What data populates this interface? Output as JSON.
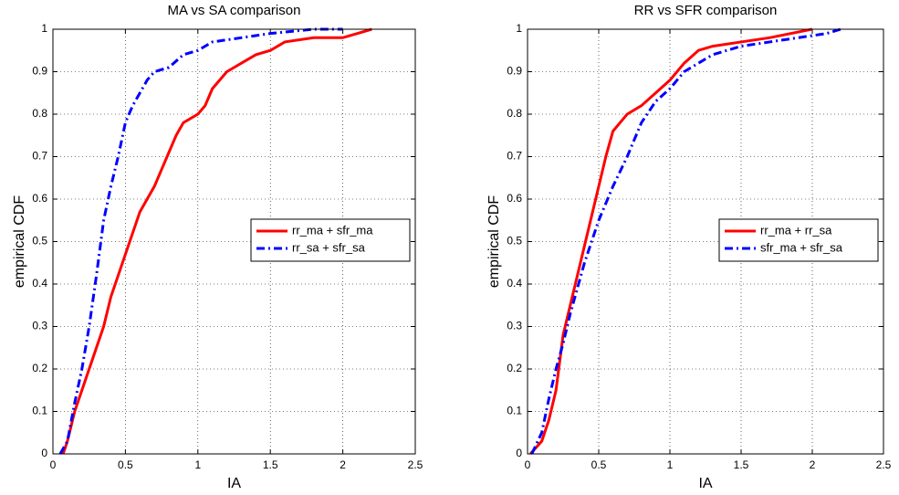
{
  "chart_data": [
    {
      "type": "line",
      "title": "MA vs SA comparison",
      "x_label": "IA",
      "y_label": "empirical CDF",
      "xlim": [
        0,
        2.5
      ],
      "ylim": [
        0,
        1
      ],
      "xticks": [
        0,
        0.5,
        1,
        1.5,
        2,
        2.5
      ],
      "yticks": [
        0,
        0.1,
        0.2,
        0.3,
        0.4,
        0.5,
        0.6,
        0.7,
        0.8,
        0.9,
        1
      ],
      "grid": true,
      "legend": "right",
      "series": [
        {
          "name": "rr_ma + sfr_ma",
          "color": "#ff0000",
          "style": "solid",
          "x": [
            0.07,
            0.1,
            0.15,
            0.2,
            0.25,
            0.3,
            0.35,
            0.4,
            0.45,
            0.5,
            0.55,
            0.6,
            0.65,
            0.7,
            0.75,
            0.8,
            0.85,
            0.9,
            1.0,
            1.05,
            1.1,
            1.2,
            1.3,
            1.4,
            1.5,
            1.6,
            1.8,
            2.0,
            2.1,
            2.2
          ],
          "values": [
            0,
            0.03,
            0.1,
            0.15,
            0.2,
            0.25,
            0.3,
            0.37,
            0.42,
            0.47,
            0.52,
            0.57,
            0.6,
            0.63,
            0.67,
            0.71,
            0.75,
            0.78,
            0.8,
            0.82,
            0.86,
            0.9,
            0.92,
            0.94,
            0.95,
            0.97,
            0.98,
            0.98,
            0.99,
            1
          ]
        },
        {
          "name": "rr_sa + sfr_sa",
          "color": "#0000ff",
          "style": "dashdot",
          "x": [
            0.05,
            0.1,
            0.15,
            0.2,
            0.25,
            0.3,
            0.35,
            0.4,
            0.45,
            0.5,
            0.55,
            0.6,
            0.65,
            0.7,
            0.8,
            0.9,
            1.0,
            1.1,
            1.3,
            1.5,
            1.8,
            2.0
          ],
          "values": [
            0,
            0.03,
            0.12,
            0.2,
            0.3,
            0.42,
            0.55,
            0.63,
            0.7,
            0.78,
            0.82,
            0.85,
            0.88,
            0.9,
            0.91,
            0.94,
            0.95,
            0.97,
            0.98,
            0.99,
            1,
            1
          ]
        }
      ]
    },
    {
      "type": "line",
      "title": "RR vs SFR comparison",
      "x_label": "IA",
      "y_label": "empirical CDF",
      "xlim": [
        0,
        2.5
      ],
      "ylim": [
        0,
        1
      ],
      "xticks": [
        0,
        0.5,
        1,
        1.5,
        2,
        2.5
      ],
      "yticks": [
        0,
        0.1,
        0.2,
        0.3,
        0.4,
        0.5,
        0.6,
        0.7,
        0.8,
        0.9,
        1
      ],
      "grid": true,
      "legend": "right",
      "series": [
        {
          "name": "rr_ma + rr_sa",
          "color": "#ff0000",
          "style": "solid",
          "x": [
            0.02,
            0.1,
            0.15,
            0.2,
            0.25,
            0.3,
            0.35,
            0.4,
            0.45,
            0.5,
            0.55,
            0.6,
            0.65,
            0.7,
            0.8,
            0.9,
            1.0,
            1.1,
            1.2,
            1.3,
            1.5,
            1.7,
            2.0
          ],
          "values": [
            0,
            0.03,
            0.08,
            0.15,
            0.28,
            0.35,
            0.42,
            0.49,
            0.56,
            0.63,
            0.7,
            0.76,
            0.78,
            0.8,
            0.82,
            0.85,
            0.88,
            0.92,
            0.95,
            0.96,
            0.97,
            0.98,
            1
          ]
        },
        {
          "name": "sfr_ma + sfr_sa",
          "color": "#0000ff",
          "style": "dashdot",
          "x": [
            0.03,
            0.1,
            0.15,
            0.2,
            0.25,
            0.3,
            0.4,
            0.5,
            0.6,
            0.7,
            0.8,
            0.9,
            1.0,
            1.1,
            1.2,
            1.3,
            1.5,
            1.7,
            1.9,
            2.1,
            2.2
          ],
          "values": [
            0,
            0.05,
            0.13,
            0.2,
            0.26,
            0.33,
            0.45,
            0.55,
            0.63,
            0.7,
            0.78,
            0.83,
            0.86,
            0.9,
            0.92,
            0.94,
            0.96,
            0.97,
            0.98,
            0.99,
            1
          ]
        }
      ]
    }
  ]
}
